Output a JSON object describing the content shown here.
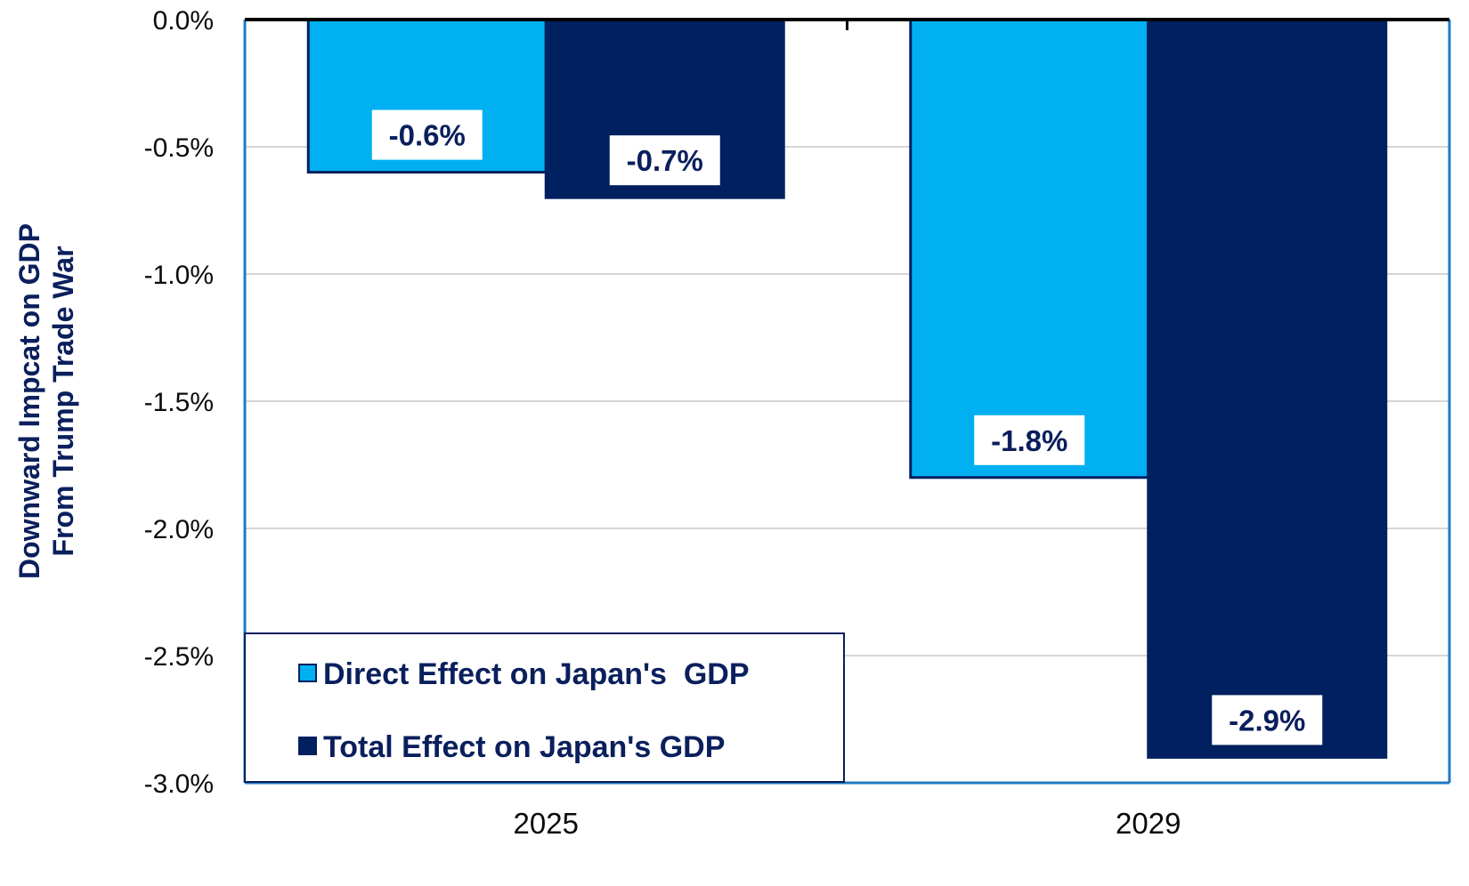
{
  "chart_data": {
    "type": "bar",
    "title": "",
    "ylabel_lines": [
      "Downward Impcat on GDP",
      "From Trump Trade War"
    ],
    "xlabel": "",
    "categories": [
      "2025",
      "2029"
    ],
    "series": [
      {
        "name": "Direct Effect on Japan's  GDP",
        "values": [
          -0.6,
          -1.8
        ],
        "labels": [
          "-0.6%",
          "-1.8%"
        ],
        "color": "#00B0F0"
      },
      {
        "name": "Total Effect on Japan's GDP",
        "values": [
          -0.7,
          -2.9
        ],
        "labels": [
          "-0.7%",
          "-2.9%"
        ],
        "color": "#002060"
      }
    ],
    "yticks": [
      0.0,
      -0.5,
      -1.0,
      -1.5,
      -2.0,
      -2.5,
      -3.0
    ],
    "ytick_labels": [
      "0.0%",
      "-0.5%",
      "-1.0%",
      "-1.5%",
      "-2.0%",
      "-2.5%",
      "-3.0%"
    ],
    "ylim": [
      -3.0,
      0.0
    ],
    "grid": true,
    "legend_position": "bottom-left",
    "plot_border_color": "#1F7AC3",
    "text_color": "#0a1f5c"
  }
}
